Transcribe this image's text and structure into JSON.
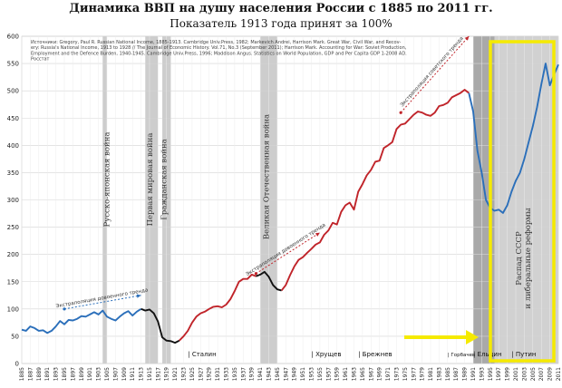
{
  "title": "Динамика ВВП на душу населения России с 1885 по 2011 гг.",
  "subtitle": "Показатель 1913 года принят за 100%",
  "sources_text": [
    "Источники: Gregory, Paul R. Russian National Income, 1885-1913. Cambridge Univ.Press, 1982; Markevich Andrei, Harrison Mark. Great War, Civil War, and Recov-",
    "ery: Russia's National Income, 1913 to 1928 // The Journal of Economic History. Vol.71, No.3 (September 2011); Harrison Mark. Accounting for War: Soviet Production,",
    "Employment and the Defence Burden, 1940-1945. Cambridge Univ.Press, 1996; Maddison Angus. Statistics on World Population, GDP and Per Capita GDP 1-2008 AD.",
    "Росстат"
  ],
  "war_bands": [
    {
      "from": 1904,
      "to": 1905,
      "label": "Русско-японская война"
    },
    {
      "from": 1914,
      "to": 1917,
      "label": "Первая мировая война"
    },
    {
      "from": 1918,
      "to": 1920,
      "label": "Гражданская война"
    },
    {
      "from": 1941,
      "to": 1945,
      "label": "Великая Отечественная война"
    },
    {
      "from": 1991,
      "to": 1996,
      "label": "Распад СССР\nи либеральные реформы"
    }
  ],
  "leaders": [
    {
      "year": 1924,
      "label": "| Сталин"
    },
    {
      "year": 1953,
      "label": "| Хрущев"
    },
    {
      "year": 1964,
      "label": "| Брежнев"
    },
    {
      "year": 1985,
      "label": "| Горбачев"
    },
    {
      "year": 1991,
      "label": "| Ельцин"
    },
    {
      "year": 2000,
      "label": "| Путин"
    }
  ],
  "trends": [
    {
      "label": "Экстраполяция довоенного тренда",
      "from": [
        1895,
        100
      ],
      "to": [
        1913,
        125
      ],
      "color": "#2b6fba"
    },
    {
      "label": "Экстраполяция довоенного тренда",
      "from": [
        1940,
        165
      ],
      "to": [
        1955,
        240
      ],
      "color": "#c0242a"
    },
    {
      "label": "Экстраполяция советского тренда",
      "from": [
        1974,
        460
      ],
      "to": [
        1990,
        600
      ],
      "color": "#c0242a"
    }
  ],
  "highlight_color": "#f5ea00",
  "chart_data": {
    "type": "line",
    "title": "Динамика ВВП на душу населения России с 1885 по 2011 гг.",
    "subtitle": "Показатель 1913 года принят за 100%",
    "xlabel": "",
    "ylabel": "",
    "xlim": [
      1885,
      2011
    ],
    "ylim": [
      0,
      600
    ],
    "y_ticks": [
      0,
      50,
      100,
      150,
      200,
      250,
      300,
      350,
      400,
      450,
      500,
      550,
      600
    ],
    "x_ticks": [
      1885,
      1887,
      1889,
      1891,
      1893,
      1895,
      1897,
      1899,
      1901,
      1903,
      1905,
      1907,
      1909,
      1911,
      1913,
      1915,
      1917,
      1919,
      1921,
      1923,
      1925,
      1927,
      1929,
      1931,
      1933,
      1935,
      1937,
      1939,
      1941,
      1943,
      1945,
      1947,
      1949,
      1951,
      1953,
      1955,
      1957,
      1959,
      1961,
      1963,
      1965,
      1967,
      1969,
      1971,
      1973,
      1975,
      1977,
      1979,
      1981,
      1983,
      1985,
      1987,
      1989,
      1991,
      1993,
      1995,
      1997,
      1999,
      2001,
      2003,
      2005,
      2007,
      2009,
      2011
    ],
    "grid": true,
    "series": [
      {
        "color": "#2b6fba",
        "x": [
          1885,
          1886,
          1887,
          1888,
          1889,
          1890,
          1891,
          1892,
          1893,
          1894,
          1895,
          1896,
          1897,
          1898,
          1899,
          1900,
          1901,
          1902,
          1903,
          1904,
          1905,
          1906,
          1907,
          1908,
          1909,
          1910,
          1911,
          1912,
          1913
        ],
        "y": [
          62,
          60,
          68,
          65,
          60,
          61,
          56,
          60,
          68,
          78,
          72,
          80,
          79,
          82,
          87,
          86,
          90,
          94,
          90,
          97,
          86,
          82,
          79,
          86,
          92,
          96,
          88,
          95,
          100
        ]
      },
      {
        "color": "#111111",
        "x": [
          1913,
          1914,
          1915,
          1916,
          1917,
          1918,
          1919,
          1920,
          1921,
          1922
        ],
        "y": [
          100,
          97,
          99,
          92,
          77,
          48,
          42,
          41,
          38,
          42
        ]
      },
      {
        "color": "#c0242a",
        "x": [
          1922,
          1923,
          1924,
          1925,
          1926,
          1927,
          1928,
          1929,
          1930,
          1931,
          1932,
          1933,
          1934,
          1935,
          1936,
          1937,
          1938,
          1939,
          1940
        ],
        "y": [
          42,
          50,
          60,
          75,
          86,
          92,
          95,
          100,
          104,
          105,
          103,
          108,
          118,
          133,
          150,
          155,
          155,
          163,
          160
        ]
      },
      {
        "color": "#111111",
        "x": [
          1940,
          1941,
          1942,
          1943,
          1944,
          1945,
          1946
        ],
        "y": [
          160,
          163,
          168,
          159,
          144,
          136,
          134
        ]
      },
      {
        "color": "#c0242a",
        "x": [
          1946,
          1947,
          1948,
          1949,
          1950,
          1951,
          1952,
          1953,
          1954,
          1955,
          1956,
          1957,
          1958,
          1959,
          1960,
          1961,
          1962,
          1963,
          1964,
          1965,
          1966,
          1967,
          1968,
          1969,
          1970,
          1971,
          1972,
          1973,
          1974,
          1975,
          1976,
          1977,
          1978,
          1979,
          1980,
          1981,
          1982,
          1983,
          1984,
          1985,
          1986,
          1987,
          1988,
          1989,
          1990
        ],
        "y": [
          134,
          144,
          162,
          178,
          190,
          195,
          203,
          210,
          218,
          222,
          236,
          244,
          258,
          255,
          278,
          290,
          295,
          282,
          315,
          329,
          345,
          355,
          370,
          372,
          395,
          400,
          406,
          430,
          438,
          440,
          448,
          456,
          462,
          460,
          456,
          454,
          460,
          472,
          474,
          478,
          488,
          492,
          496,
          502,
          496
        ]
      },
      {
        "color": "#2b6fba",
        "x": [
          1990,
          1991,
          1992,
          1993,
          1994,
          1995,
          1996,
          1997,
          1998,
          1999,
          2000,
          2001,
          2002,
          2003,
          2004,
          2005,
          2006,
          2007,
          2008,
          2009,
          2010,
          2011
        ],
        "y": [
          496,
          462,
          390,
          350,
          300,
          285,
          280,
          282,
          276,
          290,
          315,
          335,
          350,
          375,
          405,
          435,
          470,
          512,
          550,
          510,
          530,
          548
        ]
      }
    ]
  }
}
